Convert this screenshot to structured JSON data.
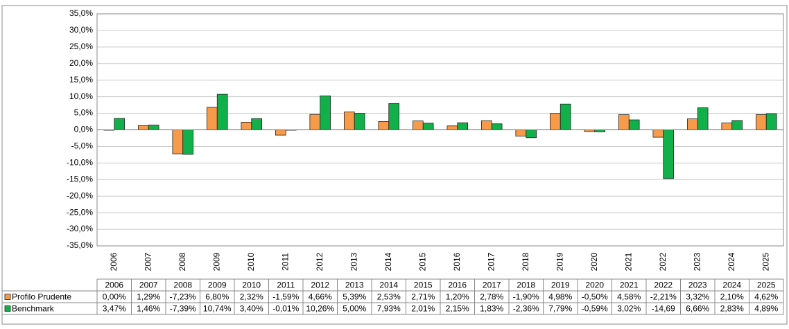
{
  "chart_data": {
    "type": "bar",
    "categories": [
      "2006",
      "2007",
      "2008",
      "2009",
      "2010",
      "2011",
      "2012",
      "2013",
      "2014",
      "2015",
      "2016",
      "2017",
      "2018",
      "2019",
      "2020",
      "2021",
      "2022",
      "2023",
      "2024",
      "2025"
    ],
    "series": [
      {
        "name": "Profilo Prudente",
        "color": "#f79a4a",
        "values": [
          0.0,
          1.29,
          -7.23,
          6.8,
          2.32,
          -1.59,
          4.66,
          5.39,
          2.53,
          2.71,
          1.2,
          2.78,
          -1.9,
          4.98,
          -0.5,
          4.58,
          -2.21,
          3.32,
          2.1,
          4.62
        ],
        "value_labels": [
          "0,00%",
          "1,29%",
          "-7,23%",
          "6,80%",
          "2,32%",
          "-1,59%",
          "4,66%",
          "5,39%",
          "2,53%",
          "2,71%",
          "1,20%",
          "2,78%",
          "-1,90%",
          "4,98%",
          "-0,50%",
          "4,58%",
          "-2,21%",
          "3,32%",
          "2,10%",
          "4,62%"
        ]
      },
      {
        "name": "Benchmark",
        "color": "#12b04a",
        "values": [
          3.47,
          1.46,
          -7.39,
          10.74,
          3.4,
          -0.01,
          10.26,
          5.0,
          7.93,
          2.01,
          2.15,
          1.83,
          -2.36,
          7.79,
          -0.59,
          3.02,
          -14.69,
          6.66,
          2.83,
          4.89
        ],
        "value_labels": [
          "3,47%",
          "1,46%",
          "-7,39%",
          "10,74%",
          "3,40%",
          "-0,01%",
          "10,26%",
          "5,00%",
          "7,93%",
          "2,01%",
          "2,15%",
          "1,83%",
          "-2,36%",
          "7,79%",
          "-0,59%",
          "3,02%",
          "-14,69",
          "6,66%",
          "2,83%",
          "4,89%"
        ]
      }
    ],
    "ylim": [
      -35,
      35
    ],
    "yticks": [
      {
        "value": 35,
        "label": "35,0%"
      },
      {
        "value": 30,
        "label": "30,0%"
      },
      {
        "value": 25,
        "label": "25,0%"
      },
      {
        "value": 20,
        "label": "20,0%"
      },
      {
        "value": 15,
        "label": "15,0%"
      },
      {
        "value": 10,
        "label": "10,0%"
      },
      {
        "value": 5,
        "label": "5,0%"
      },
      {
        "value": 0,
        "label": "0,0%"
      },
      {
        "value": -5,
        "label": "-5,0%"
      },
      {
        "value": -10,
        "label": "-10,0%"
      },
      {
        "value": -15,
        "label": "-15,0%"
      },
      {
        "value": -20,
        "label": "-20,0%"
      },
      {
        "value": -25,
        "label": "-25,0%"
      },
      {
        "value": -30,
        "label": "-30,0%"
      },
      {
        "value": -35,
        "label": "-35,0%"
      }
    ],
    "grid": true
  }
}
